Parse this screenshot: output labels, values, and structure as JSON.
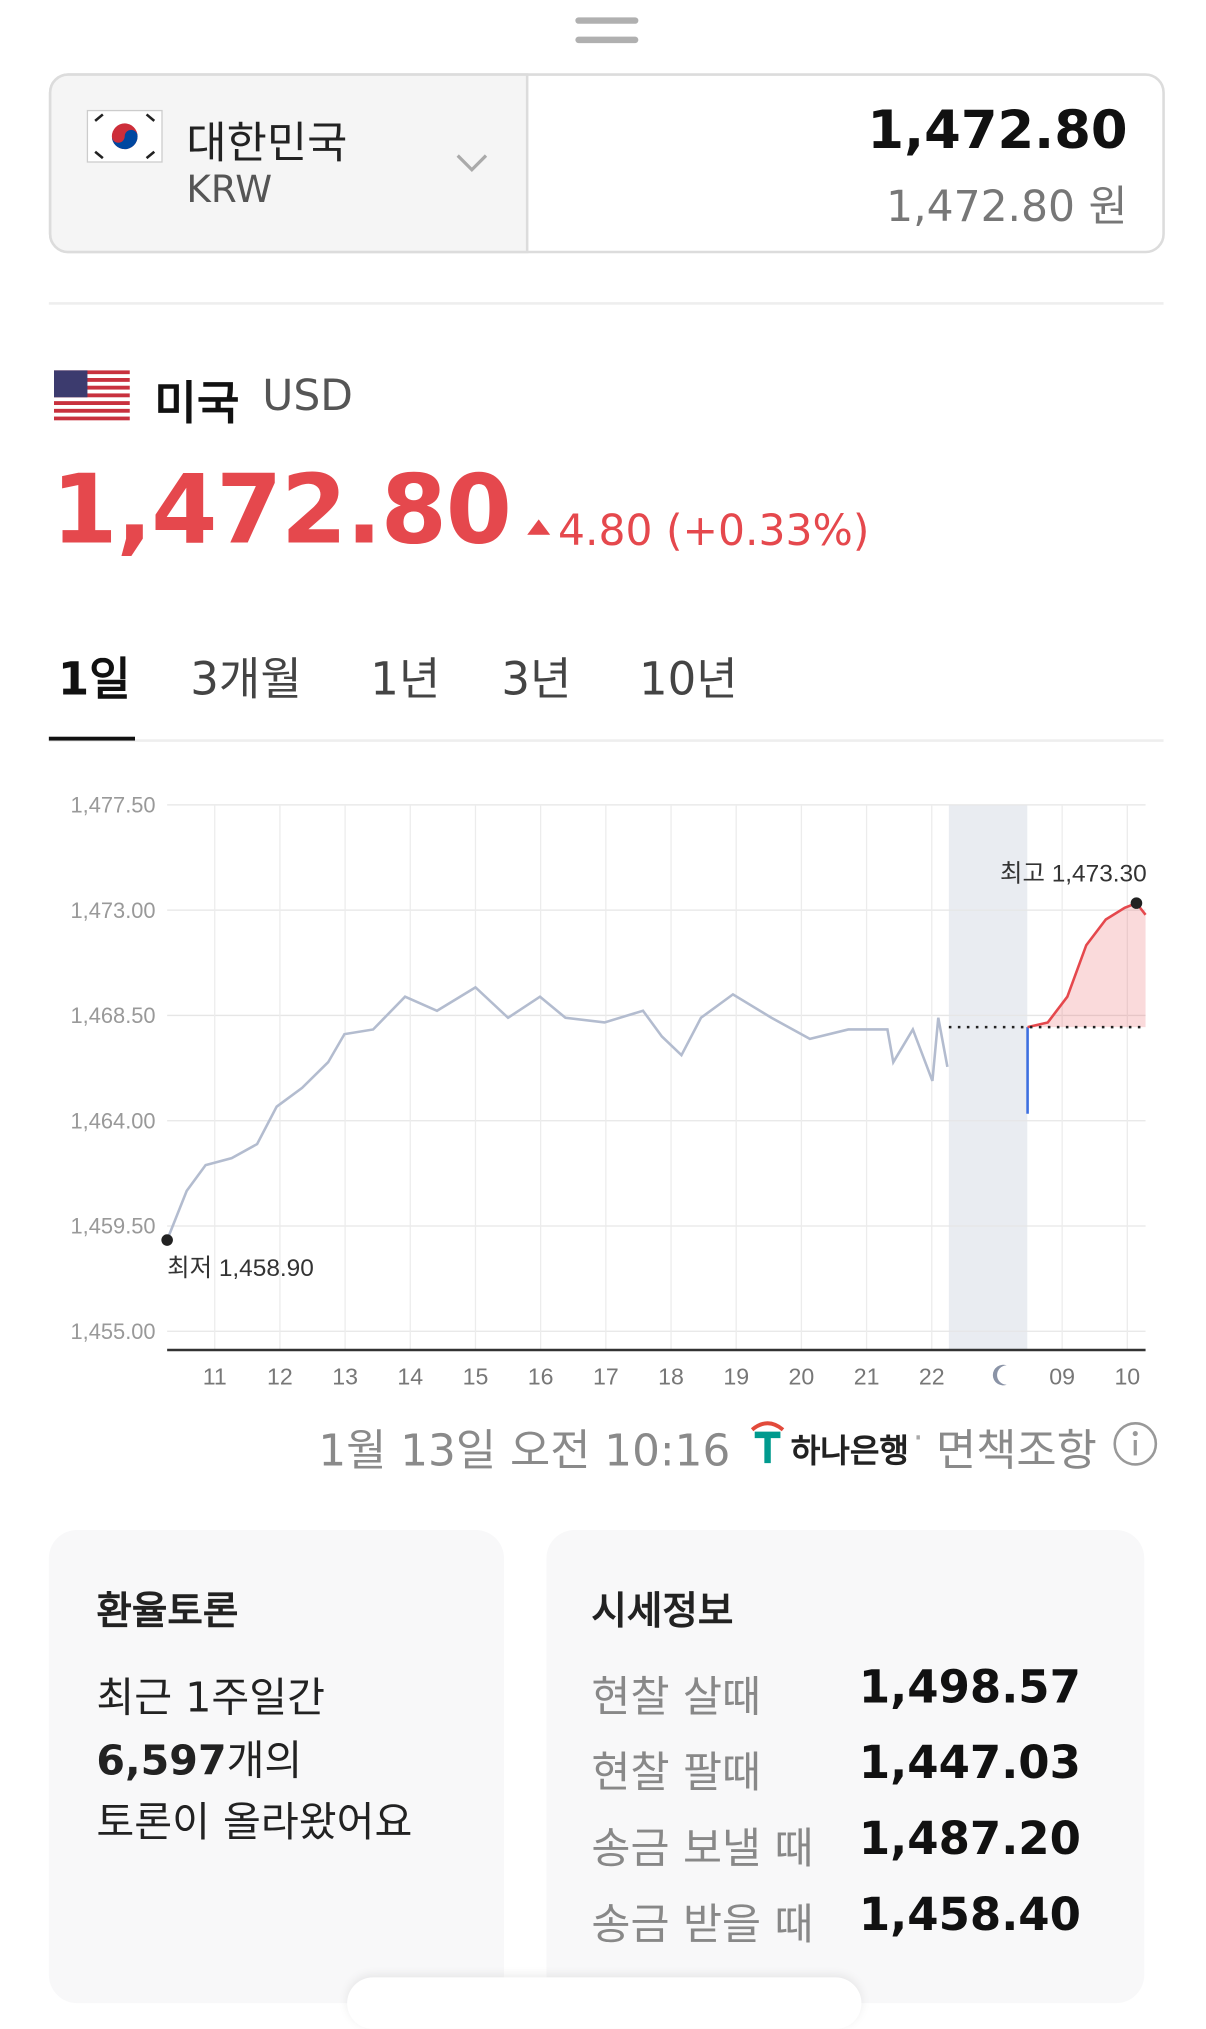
{
  "header": {
    "country": "대한민국",
    "currency": "KRW",
    "amount": "1,472.80",
    "amount_won": "1,472.80 원"
  },
  "quote": {
    "country": "미국",
    "currency": "USD",
    "price": "1,472.80",
    "change": "4.80 (+0.33%)"
  },
  "tabs": [
    "1일",
    "3개월",
    "1년",
    "3년",
    "10년"
  ],
  "chart_data": {
    "type": "line",
    "xlim": [
      0.27,
      15.28
    ],
    "xticks": [
      {
        "value": 1,
        "label": "11"
      },
      {
        "value": 2,
        "label": "12"
      },
      {
        "value": 3,
        "label": "13"
      },
      {
        "value": 4,
        "label": "14"
      },
      {
        "value": 5,
        "label": "15"
      },
      {
        "value": 6,
        "label": "16"
      },
      {
        "value": 7,
        "label": "17"
      },
      {
        "value": 8,
        "label": "18"
      },
      {
        "value": 9,
        "label": "19"
      },
      {
        "value": 10,
        "label": "20"
      },
      {
        "value": 11,
        "label": "21"
      },
      {
        "value": 12,
        "label": "22"
      },
      {
        "value": 14,
        "label": "09"
      },
      {
        "value": 15,
        "label": "10"
      }
    ],
    "ylim": [
      1454.2,
      1477.5
    ],
    "yticks": [
      {
        "value": 1455,
        "label": "1,455.00"
      },
      {
        "value": 1459.5,
        "label": "1,459.50"
      },
      {
        "value": 1464,
        "label": "1,464.00"
      },
      {
        "value": 1468.5,
        "label": "1,468.50"
      },
      {
        "value": 1473,
        "label": "1,473.00"
      },
      {
        "value": 1477.5,
        "label": "1,477.50"
      }
    ],
    "grid": true,
    "reference_line": 1468.0,
    "series": [
      {
        "color": "#b3bccf",
        "area": false,
        "x": [
          0.27,
          0.57,
          0.86,
          1.26,
          1.65,
          1.95,
          2.34,
          2.74,
          2.99,
          3.43,
          3.92,
          4.41,
          5.0,
          5.5,
          5.99,
          6.38,
          6.98,
          7.57,
          7.86,
          8.16,
          8.46,
          8.95,
          9.54,
          10.13,
          10.72,
          11.32,
          11.41,
          11.71,
          12.01,
          12.1,
          12.24
        ],
        "values": [
          1458.9,
          1461.0,
          1462.1,
          1462.4,
          1463.0,
          1464.6,
          1465.4,
          1466.5,
          1467.7,
          1467.9,
          1469.3,
          1468.7,
          1469.7,
          1468.4,
          1469.3,
          1468.4,
          1468.2,
          1468.7,
          1467.6,
          1466.8,
          1468.4,
          1469.4,
          1468.4,
          1467.5,
          1467.9,
          1467.9,
          1466.5,
          1467.9,
          1465.7,
          1468.4,
          1466.3
        ]
      },
      {
        "color": "#3d6fe0",
        "area": false,
        "x": [
          13.47,
          13.47
        ],
        "values": [
          1468.0,
          1464.3
        ]
      },
      {
        "color": "#e5484d",
        "area": true,
        "x": [
          13.47,
          13.78,
          14.08,
          14.37,
          14.67,
          14.96,
          15.14,
          15.28
        ],
        "values": [
          1468.0,
          1468.2,
          1469.3,
          1471.5,
          1472.6,
          1473.1,
          1473.3,
          1472.8
        ]
      }
    ],
    "min_marker": {
      "x": 0.27,
      "value": 1458.9,
      "text": "최저 1,458.90"
    },
    "max_marker": {
      "x": 15.14,
      "value": 1473.3,
      "text": "최고 1,473.30"
    }
  },
  "footer": {
    "timestamp": "1월 13일 오전 10:16",
    "bank": "하나은행",
    "disclaimer": "면책조항"
  },
  "discussion": {
    "title": "환율토론",
    "line1": "최근 1주일간",
    "count": "6,597",
    "count_suffix": "개의",
    "line3": "토론이 올라왔어요"
  },
  "market": {
    "title": "시세정보",
    "rows": [
      [
        "현찰 살때",
        "1,498.57"
      ],
      [
        "현찰 팔때",
        "1,447.03"
      ],
      [
        "송금 보낼 때",
        "1,487.20"
      ],
      [
        "송금 받을 때",
        "1,458.40"
      ]
    ]
  }
}
